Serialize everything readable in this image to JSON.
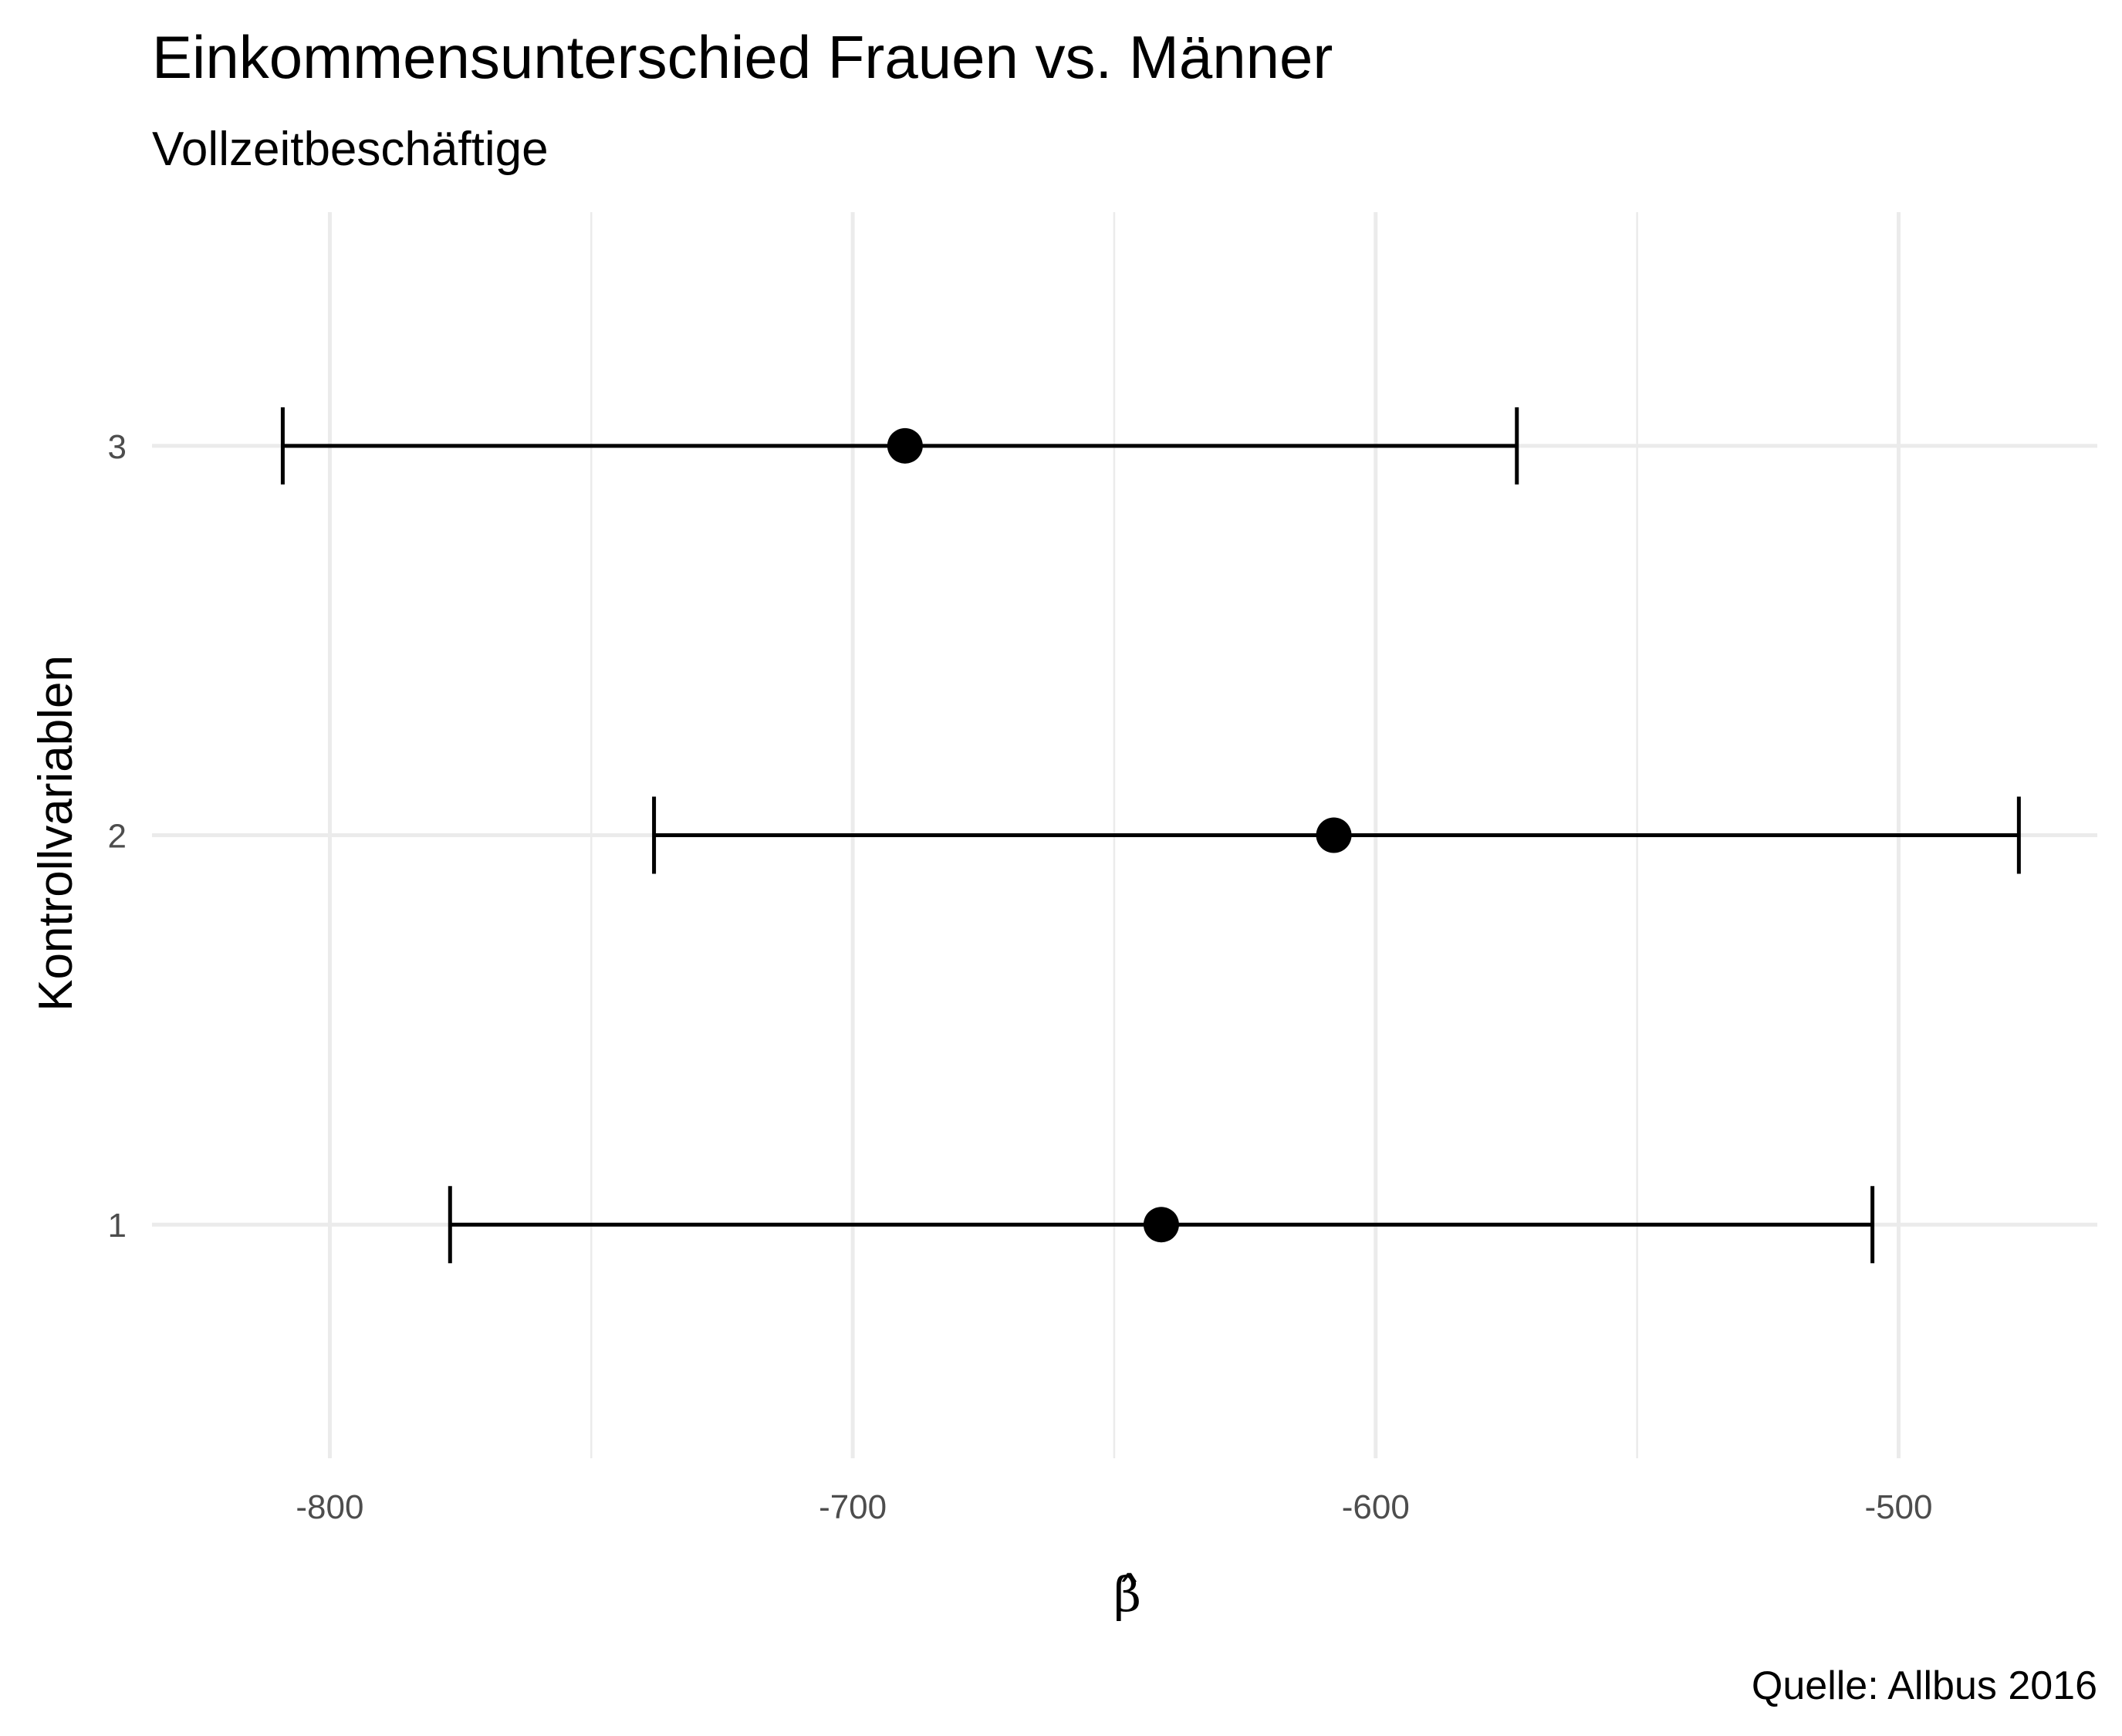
{
  "chart_data": {
    "type": "errorbar",
    "title": "Einkommensunterschied Frauen vs. Männer",
    "subtitle": "Vollzeitbeschäftige",
    "caption": "Quelle: Allbus 2016",
    "xlabel": "β̂",
    "ylabel": "Kontrollvariablen",
    "xlim": [
      -834,
      -462
    ],
    "ylim": [
      0.4,
      3.6
    ],
    "x_ticks": [
      -800,
      -700,
      -600,
      -500
    ],
    "x_tick_labels": [
      "-800",
      "-700",
      "-600",
      "-500"
    ],
    "y_ticks": [
      1,
      2,
      3
    ],
    "y_tick_labels": [
      "1",
      "2",
      "3"
    ],
    "grid": true,
    "series": [
      {
        "points": [
          {
            "y": 1,
            "estimate": -641,
            "lower": -777,
            "upper": -505
          },
          {
            "y": 2,
            "estimate": -608,
            "lower": -738,
            "upper": -477
          },
          {
            "y": 3,
            "estimate": -690,
            "lower": -809,
            "upper": -573
          }
        ]
      }
    ],
    "colors": {
      "point": "#000000",
      "errorbar": "#000000",
      "grid": "#ebebeb",
      "tick_text": "#4d4d4d"
    }
  }
}
